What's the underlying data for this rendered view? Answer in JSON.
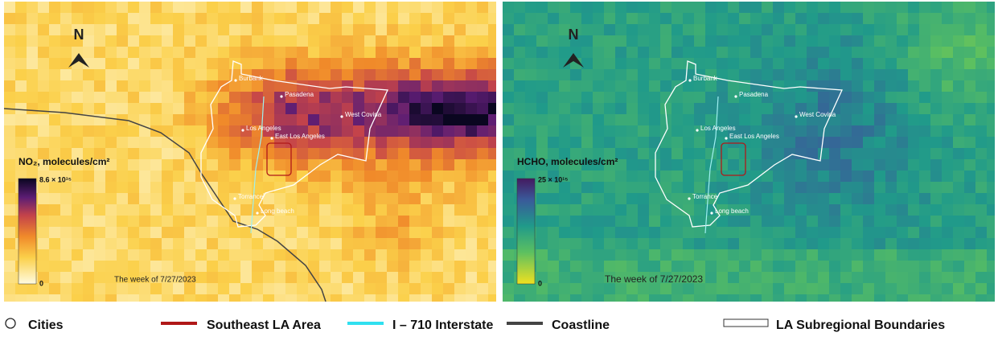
{
  "panels": [
    {
      "title": "NO₂, molecules/cm²",
      "scale_max": "8.6 × 10¹⁵",
      "scale_min": "0",
      "week": "The week of 7/27/2023",
      "north": "N",
      "cities": [
        "Burbank",
        "Pasadena",
        "West Covina",
        "Los Angeles",
        "East Los Angeles",
        "Torrance",
        "Long beach"
      ]
    },
    {
      "title": "HCHO, molecules/cm²",
      "scale_max": "25 × 10¹⁵",
      "scale_min": "0",
      "week": "The week of 7/27/2023",
      "north": "N",
      "cities": [
        "Burbank",
        "Pasadena",
        "West Covina",
        "Los Angeles",
        "East Los Angeles",
        "Torrance",
        "Long beach"
      ]
    }
  ],
  "legend": [
    "Cities",
    "Southeast LA Area",
    "I – 710 Interstate",
    "Coastline",
    "LA Subregional Boundaries"
  ]
}
